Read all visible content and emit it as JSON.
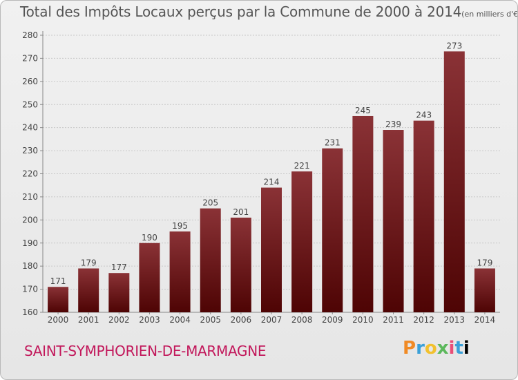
{
  "header": {
    "title": "Total des Impôts Locaux perçus par la Commune de 2000 à 2014",
    "unit": "(en milliers d'€)"
  },
  "footer": {
    "commune": "SAINT-SYMPHORIEN-DE-MARMAGNE",
    "logo": "Proxiti",
    "logo_letters": [
      "P",
      "r",
      "o",
      "x",
      "i",
      "t",
      "i"
    ]
  },
  "colors": {
    "bar_top": "#8a3236",
    "bar_bottom": "#4e0404",
    "commune": "#c2185b"
  },
  "chart_data": {
    "type": "bar",
    "title": "Total des Impôts Locaux perçus par la Commune de 2000 à 2014",
    "categories": [
      "2000",
      "2001",
      "2002",
      "2003",
      "2004",
      "2005",
      "2006",
      "2007",
      "2008",
      "2009",
      "2010",
      "2011",
      "2012",
      "2013",
      "2014"
    ],
    "values": [
      171,
      179,
      177,
      190,
      195,
      205,
      201,
      214,
      221,
      231,
      245,
      239,
      243,
      273,
      179
    ],
    "ylim": [
      160,
      280
    ],
    "yticks": [
      160,
      170,
      180,
      190,
      200,
      210,
      220,
      230,
      240,
      250,
      260,
      270,
      280
    ],
    "grid": true,
    "data_labels": true
  }
}
